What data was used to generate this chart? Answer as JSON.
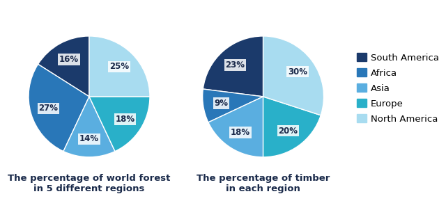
{
  "forest": {
    "values": [
      16,
      27,
      14,
      18,
      25
    ],
    "startangle": 90,
    "title": "The percentage of world forest\nin 5 different regions"
  },
  "timber": {
    "values": [
      23,
      9,
      18,
      20,
      30
    ],
    "startangle": 90,
    "title": "The percentage of timber\nin each region"
  },
  "regions": [
    "South America",
    "Africa",
    "Asia",
    "Europe",
    "North America"
  ],
  "colors": [
    "#1b3a6b",
    "#2977b8",
    "#5aaee0",
    "#29b0c9",
    "#a8dcf0"
  ],
  "background_color": "#ffffff",
  "title_fontsize": 9.5,
  "label_fontsize": 8.5,
  "legend_fontsize": 9.5
}
